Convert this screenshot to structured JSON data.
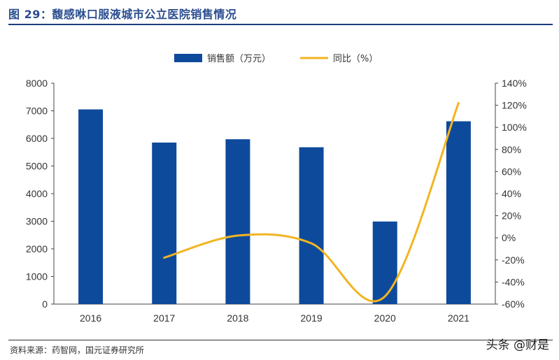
{
  "header": {
    "title": "图 29：馥感咻口服液城市公立医院销售情况"
  },
  "footer": {
    "source": "资料来源：药智网，国元证券研究所",
    "watermark": "头条 @财是"
  },
  "colors": {
    "bar": "#0e4a9b",
    "line": "#f2b522",
    "title": "#2a4d8f"
  },
  "chart_data": {
    "type": "bar",
    "title": "",
    "xlabel": "",
    "ylabel": "",
    "categories": [
      "2016",
      "2017",
      "2018",
      "2019",
      "2020",
      "2021"
    ],
    "series": [
      {
        "name": "销售额（万元）",
        "type": "bar",
        "axis": "left",
        "values": [
          7050,
          5850,
          5970,
          5680,
          2990,
          6620
        ]
      },
      {
        "name": "同比（%）",
        "type": "line",
        "axis": "right",
        "smooth": true,
        "x": [
          "2017",
          "2018",
          "2019",
          "2020",
          "2021"
        ],
        "values": [
          -18,
          2,
          -5,
          -53,
          122
        ]
      }
    ],
    "ylim_left": [
      0,
      8000
    ],
    "yticks_left": [
      "0",
      "1000",
      "2000",
      "3000",
      "4000",
      "5000",
      "6000",
      "7000",
      "8000"
    ],
    "ylim_right": [
      -60,
      140
    ],
    "yticks_right": [
      "-60%",
      "-40%",
      "-20%",
      "0%",
      "20%",
      "40%",
      "60%",
      "80%",
      "100%",
      "120%",
      "140%"
    ],
    "grid": false,
    "legend_position": "top"
  }
}
